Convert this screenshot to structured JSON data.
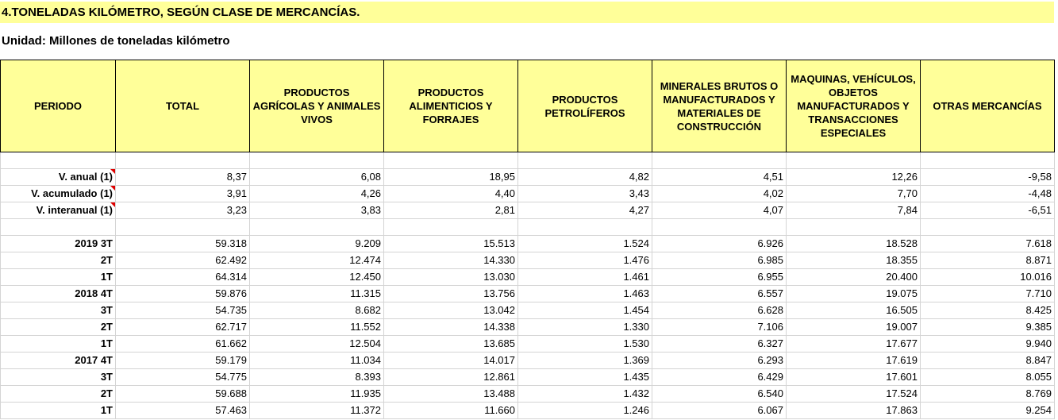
{
  "title": "4.TONELADAS KILÓMETRO, SEGÚN CLASE DE MERCANCÍAS.",
  "unit": "Unidad: Millones de toneladas kilómetro",
  "table": {
    "header": [
      "PERIODO",
      "TOTAL",
      "PRODUCTOS AGRÍCOLAS Y ANIMALES VIVOS",
      "PRODUCTOS ALIMENTICIOS Y FORRAJES",
      "PRODUCTOS PETROLÍFEROS",
      "MINERALES BRUTOS O MANUFACTURADOS Y MATERIALES DE CONSTRUCCIÓN",
      "MAQUINAS, VEHÍCULOS, OBJETOS MANUFACTURADOS Y TRANSACCIONES ESPECIALES",
      "OTRAS MERCANCÍAS"
    ],
    "rows": [
      [
        "V. anual (1)",
        "8,37",
        "6,08",
        "18,95",
        "4,82",
        "4,51",
        "12,26",
        "-9,58"
      ],
      [
        "V. acumulado (1)",
        "3,91",
        "4,26",
        "4,40",
        "3,43",
        "4,02",
        "7,70",
        "-4,48"
      ],
      [
        "V. interanual (1)",
        "3,23",
        "3,83",
        "2,81",
        "4,27",
        "4,07",
        "7,84",
        "-6,51"
      ],
      [
        "2019 3T",
        "59.318",
        "9.209",
        "15.513",
        "1.524",
        "6.926",
        "18.528",
        "7.618"
      ],
      [
        "2T",
        "62.492",
        "12.474",
        "14.330",
        "1.476",
        "6.985",
        "18.355",
        "8.871"
      ],
      [
        "1T",
        "64.314",
        "12.450",
        "13.030",
        "1.461",
        "6.955",
        "20.400",
        "10.016"
      ],
      [
        "2018 4T",
        "59.876",
        "11.315",
        "13.756",
        "1.463",
        "6.557",
        "19.075",
        "7.710"
      ],
      [
        "3T",
        "54.735",
        "8.682",
        "13.042",
        "1.454",
        "6.628",
        "16.505",
        "8.425"
      ],
      [
        "2T",
        "62.717",
        "11.552",
        "14.338",
        "1.330",
        "7.106",
        "19.007",
        "9.385"
      ],
      [
        "1T",
        "61.662",
        "12.504",
        "13.685",
        "1.530",
        "6.327",
        "17.677",
        "9.940"
      ],
      [
        "2017 4T",
        "59.179",
        "11.034",
        "14.017",
        "1.369",
        "6.293",
        "17.619",
        "8.847"
      ],
      [
        "3T",
        "54.775",
        "8.393",
        "12.861",
        "1.435",
        "6.429",
        "17.601",
        "8.055"
      ],
      [
        "2T",
        "59.688",
        "11.935",
        "13.488",
        "1.432",
        "6.540",
        "17.524",
        "8.769"
      ],
      [
        "1T",
        "57.463",
        "11.372",
        "11.660",
        "1.246",
        "6.067",
        "17.863",
        "9.254"
      ]
    ]
  }
}
